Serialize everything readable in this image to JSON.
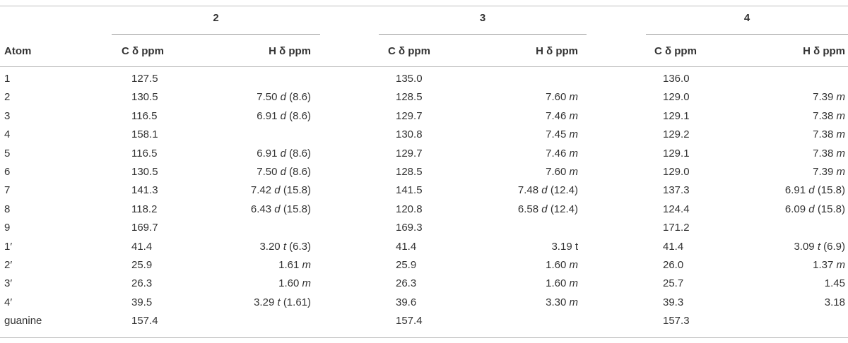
{
  "groups": {
    "g2": "2",
    "g3": "3",
    "g4": "4"
  },
  "headers": {
    "atom": "Atom",
    "c2": "C δ ppm",
    "h2": "H δ ppm",
    "c3": "C δ ppm",
    "h3": "H δ ppm",
    "c4": "C δ ppm",
    "h4": "H δ ppm"
  },
  "rows": [
    {
      "atom": "1",
      "c2": "127.5",
      "h2": {
        "v": "",
        "m": "",
        "j": ""
      },
      "c3": "135.0",
      "h3": {
        "v": "",
        "m": "",
        "j": ""
      },
      "c4": "136.0",
      "h4": {
        "v": "",
        "m": "",
        "j": ""
      }
    },
    {
      "atom": "2",
      "c2": "130.5",
      "h2": {
        "v": "7.50",
        "m": "d",
        "j": "(8.6)"
      },
      "c3": "128.5",
      "h3": {
        "v": "7.60",
        "m": "m",
        "j": ""
      },
      "c4": "129.0",
      "h4": {
        "v": "7.39",
        "m": "m",
        "j": ""
      }
    },
    {
      "atom": "3",
      "c2": "116.5",
      "h2": {
        "v": "6.91",
        "m": "d",
        "j": "(8.6)"
      },
      "c3": "129.7",
      "h3": {
        "v": "7.46",
        "m": "m",
        "j": ""
      },
      "c4": "129.1",
      "h4": {
        "v": "7.38",
        "m": "m",
        "j": ""
      }
    },
    {
      "atom": "4",
      "c2": "158.1",
      "h2": {
        "v": "",
        "m": "",
        "j": ""
      },
      "c3": "130.8",
      "h3": {
        "v": "7.45",
        "m": "m",
        "j": ""
      },
      "c4": "129.2",
      "h4": {
        "v": "7.38",
        "m": "m",
        "j": ""
      }
    },
    {
      "atom": "5",
      "c2": "116.5",
      "h2": {
        "v": "6.91",
        "m": "d",
        "j": "(8.6)"
      },
      "c3": "129.7",
      "h3": {
        "v": "7.46",
        "m": "m",
        "j": ""
      },
      "c4": "129.1",
      "h4": {
        "v": "7.38",
        "m": "m",
        "j": ""
      }
    },
    {
      "atom": "6",
      "c2": "130.5",
      "h2": {
        "v": "7.50",
        "m": "d",
        "j": "(8.6)"
      },
      "c3": "128.5",
      "h3": {
        "v": "7.60",
        "m": "m",
        "j": ""
      },
      "c4": "129.0",
      "h4": {
        "v": "7.39",
        "m": "m",
        "j": ""
      }
    },
    {
      "atom": "7",
      "c2": "141.3",
      "h2": {
        "v": "7.42",
        "m": "d",
        "j": "(15.8)"
      },
      "c3": "141.5",
      "h3": {
        "v": "7.48",
        "m": "d",
        "j": "(12.4)"
      },
      "c4": "137.3",
      "h4": {
        "v": "6.91",
        "m": "d",
        "j": "(15.8)"
      }
    },
    {
      "atom": "8",
      "c2": "118.2",
      "h2": {
        "v": "6.43",
        "m": "d",
        "j": "(15.8)"
      },
      "c3": "120.8",
      "h3": {
        "v": "6.58",
        "m": "d",
        "j": "(12.4)"
      },
      "c4": "124.4",
      "h4": {
        "v": "6.09",
        "m": "d",
        "j": "(15.8)"
      }
    },
    {
      "atom": "9",
      "c2": "169.7",
      "h2": {
        "v": "",
        "m": "",
        "j": ""
      },
      "c3": "169.3",
      "h3": {
        "v": "",
        "m": "",
        "j": ""
      },
      "c4": "171.2",
      "h4": {
        "v": "",
        "m": "",
        "j": ""
      }
    },
    {
      "atom": "1′",
      "c2": "41.4",
      "h2": {
        "v": "3.20",
        "m": "t",
        "j": "(6.3)"
      },
      "c3": "41.4",
      "h3": {
        "v": "3.19 t",
        "m": "",
        "j": ""
      },
      "c4": "41.4",
      "h4": {
        "v": "3.09",
        "m": "t",
        "j": "(6.9)"
      }
    },
    {
      "atom": "2′",
      "c2": "25.9",
      "h2": {
        "v": "1.61",
        "m": "m",
        "j": ""
      },
      "c3": "25.9",
      "h3": {
        "v": "1.60",
        "m": "m",
        "j": ""
      },
      "c4": "26.0",
      "h4": {
        "v": "1.37",
        "m": "m",
        "j": ""
      }
    },
    {
      "atom": "3′",
      "c2": "26.3",
      "h2": {
        "v": "1.60",
        "m": "m",
        "j": ""
      },
      "c3": "26.3",
      "h3": {
        "v": "1.60",
        "m": "m",
        "j": ""
      },
      "c4": "25.7",
      "h4": {
        "v": "1.45",
        "m": "",
        "j": ""
      }
    },
    {
      "atom": "4′",
      "c2": "39.5",
      "h2": {
        "v": "3.29",
        "m": "t",
        "j": "(1.61)"
      },
      "c3": "39.6",
      "h3": {
        "v": "3.30",
        "m": "m",
        "j": ""
      },
      "c4": "39.3",
      "h4": {
        "v": "3.18",
        "m": "",
        "j": ""
      }
    },
    {
      "atom": "guanine",
      "c2": "157.4",
      "h2": {
        "v": "",
        "m": "",
        "j": ""
      },
      "c3": "157.4",
      "h3": {
        "v": "",
        "m": "",
        "j": ""
      },
      "c4": "157.3",
      "h4": {
        "v": "",
        "m": "",
        "j": ""
      }
    }
  ]
}
